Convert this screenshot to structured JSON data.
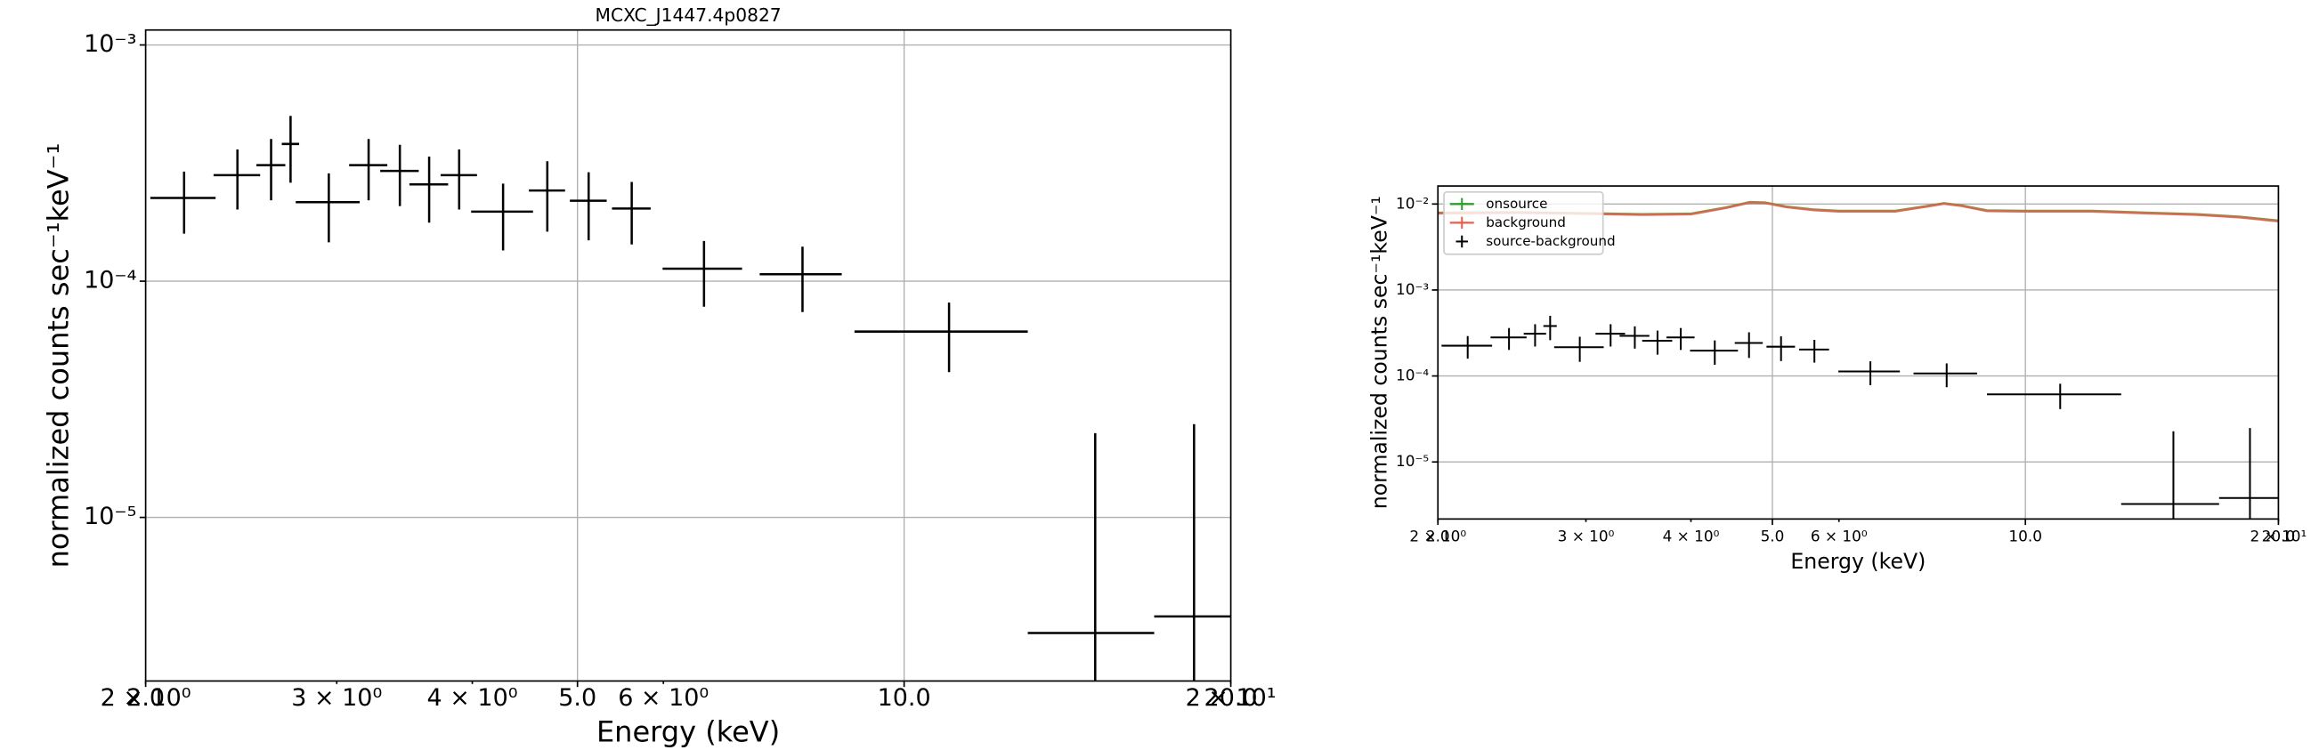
{
  "chart_data": [
    {
      "type": "errorbar",
      "title": "MCXC_J1447.4p0827",
      "xlabel": "Energy (keV)",
      "ylabel": "normalized counts sec⁻¹keV⁻¹",
      "xscale": "log",
      "yscale": "log",
      "grid": true,
      "xlim": [
        2,
        20
      ],
      "ylim": [
        2.03e-06,
        0.001157
      ],
      "xticks": [
        {
          "value": 2,
          "label": "2.0"
        },
        {
          "value": 5,
          "label": "5.0"
        },
        {
          "value": 10,
          "label": "10.0"
        },
        {
          "value": 20,
          "label": "20.0"
        }
      ],
      "xticks_minor": [
        {
          "value": 2,
          "label": "2 × 10⁰"
        },
        {
          "value": 3,
          "label": "3 × 10⁰"
        },
        {
          "value": 4,
          "label": "4 × 10⁰"
        },
        {
          "value": 6,
          "label": "6 × 10⁰"
        },
        {
          "value": 20,
          "label": "2 × 10¹"
        }
      ],
      "yticks": [
        {
          "value": 1e-05,
          "label": "10⁻⁵"
        },
        {
          "value": 0.0001,
          "label": "10⁻⁴"
        },
        {
          "value": 0.001,
          "label": "10⁻³"
        }
      ],
      "series": [
        {
          "color": "#000000",
          "x": [
            2.17,
            2.43,
            2.61,
            2.72,
            2.95,
            3.21,
            3.43,
            3.65,
            3.89,
            4.27,
            4.69,
            5.12,
            5.61,
            6.54,
            8.06,
            11.0,
            15.0,
            18.5
          ],
          "xerr": [
            0.15,
            0.12,
            0.08,
            0.05,
            0.2,
            0.13,
            0.14,
            0.15,
            0.15,
            0.28,
            0.18,
            0.2,
            0.23,
            0.55,
            0.7,
            2.0,
            2.0,
            1.5
          ],
          "values": [
            0.000225,
            0.000281,
            0.00031,
            0.000381,
            0.000216,
            0.00031,
            0.000293,
            0.000257,
            0.000281,
            0.000197,
            0.000242,
            0.000219,
            0.000203,
            0.000113,
            0.000107,
            6.12e-05,
            3.24e-06,
            3.81e-06
          ],
          "yerr": [
            6.6e-05,
            8e-05,
            9e-05,
            0.00012,
            7e-05,
            9e-05,
            8.5e-05,
            8e-05,
            8e-05,
            6.2e-05,
            8e-05,
            7e-05,
            6e-05,
            3.5e-05,
            3.3e-05,
            2e-05,
            1.95e-05,
            2.1e-05
          ]
        }
      ]
    },
    {
      "type": "errorbar",
      "xlabel": "Energy (keV)",
      "ylabel": "normalized counts sec⁻¹keV⁻¹",
      "xscale": "log",
      "yscale": "log",
      "grid": true,
      "legend": "upper left",
      "xlim": [
        2,
        20
      ],
      "ylim": [
        2.17e-06,
        0.0162
      ],
      "xticks": [
        {
          "value": 2,
          "label": "2.0"
        },
        {
          "value": 5,
          "label": "5.0"
        },
        {
          "value": 10,
          "label": "10.0"
        },
        {
          "value": 20,
          "label": "20.0"
        }
      ],
      "xticks_minor": [
        {
          "value": 2,
          "label": "2 × 10⁰"
        },
        {
          "value": 3,
          "label": "3 × 10⁰"
        },
        {
          "value": 4,
          "label": "4 × 10⁰"
        },
        {
          "value": 6,
          "label": "6 × 10⁰"
        },
        {
          "value": 20,
          "label": "2 × 10¹"
        }
      ],
      "yticks": [
        {
          "value": 1e-05,
          "label": "10⁻⁵"
        },
        {
          "value": 0.0001,
          "label": "10⁻⁴"
        },
        {
          "value": 0.001,
          "label": "10⁻³"
        },
        {
          "value": 0.01,
          "label": "10⁻²"
        }
      ],
      "series": [
        {
          "name": "onsource",
          "color": "#2ca02c",
          "kind": "line",
          "x": [
            2,
            2.5,
            3,
            3.5,
            4,
            4.4,
            4.7,
            4.9,
            5.2,
            5.6,
            6,
            7,
            7.6,
            8,
            8.4,
            9,
            10,
            12,
            14,
            16,
            18,
            20
          ],
          "values": [
            0.0079,
            0.008,
            0.0078,
            0.0076,
            0.0077,
            0.0091,
            0.0105,
            0.0104,
            0.0093,
            0.0086,
            0.0083,
            0.0083,
            0.0094,
            0.0102,
            0.0096,
            0.0084,
            0.0083,
            0.0083,
            0.0079,
            0.0076,
            0.0071,
            0.0064
          ]
        },
        {
          "name": "background",
          "color": "#e8604c",
          "kind": "line",
          "x": [
            2,
            2.5,
            3,
            3.5,
            4,
            4.4,
            4.7,
            4.9,
            5.2,
            5.6,
            6,
            7,
            7.6,
            8,
            8.4,
            9,
            10,
            12,
            14,
            16,
            18,
            20
          ],
          "values": [
            0.0078,
            0.0079,
            0.0077,
            0.0075,
            0.0076,
            0.009,
            0.0104,
            0.0103,
            0.0092,
            0.0085,
            0.0082,
            0.0082,
            0.0093,
            0.0101,
            0.0095,
            0.0083,
            0.0082,
            0.0082,
            0.0078,
            0.0075,
            0.007,
            0.0063
          ]
        },
        {
          "name": "source-background",
          "color": "#000000",
          "x": [
            2.17,
            2.43,
            2.61,
            2.72,
            2.95,
            3.21,
            3.43,
            3.65,
            3.89,
            4.27,
            4.69,
            5.12,
            5.61,
            6.54,
            8.06,
            11.0,
            15.0,
            18.5
          ],
          "xerr": [
            0.15,
            0.12,
            0.08,
            0.05,
            0.2,
            0.13,
            0.14,
            0.15,
            0.15,
            0.28,
            0.18,
            0.2,
            0.23,
            0.55,
            0.7,
            2.0,
            2.0,
            1.5
          ],
          "values": [
            0.000225,
            0.000281,
            0.00031,
            0.000381,
            0.000216,
            0.00031,
            0.000293,
            0.000257,
            0.000281,
            0.000197,
            0.000242,
            0.000219,
            0.000203,
            0.000113,
            0.000107,
            6.12e-05,
            3.24e-06,
            3.81e-06
          ],
          "yerr": [
            6.6e-05,
            8e-05,
            9e-05,
            0.00012,
            7e-05,
            9e-05,
            8.5e-05,
            8e-05,
            8e-05,
            6.2e-05,
            8e-05,
            7e-05,
            6e-05,
            3.5e-05,
            3.3e-05,
            2e-05,
            1.95e-05,
            2.1e-05
          ]
        }
      ]
    }
  ]
}
